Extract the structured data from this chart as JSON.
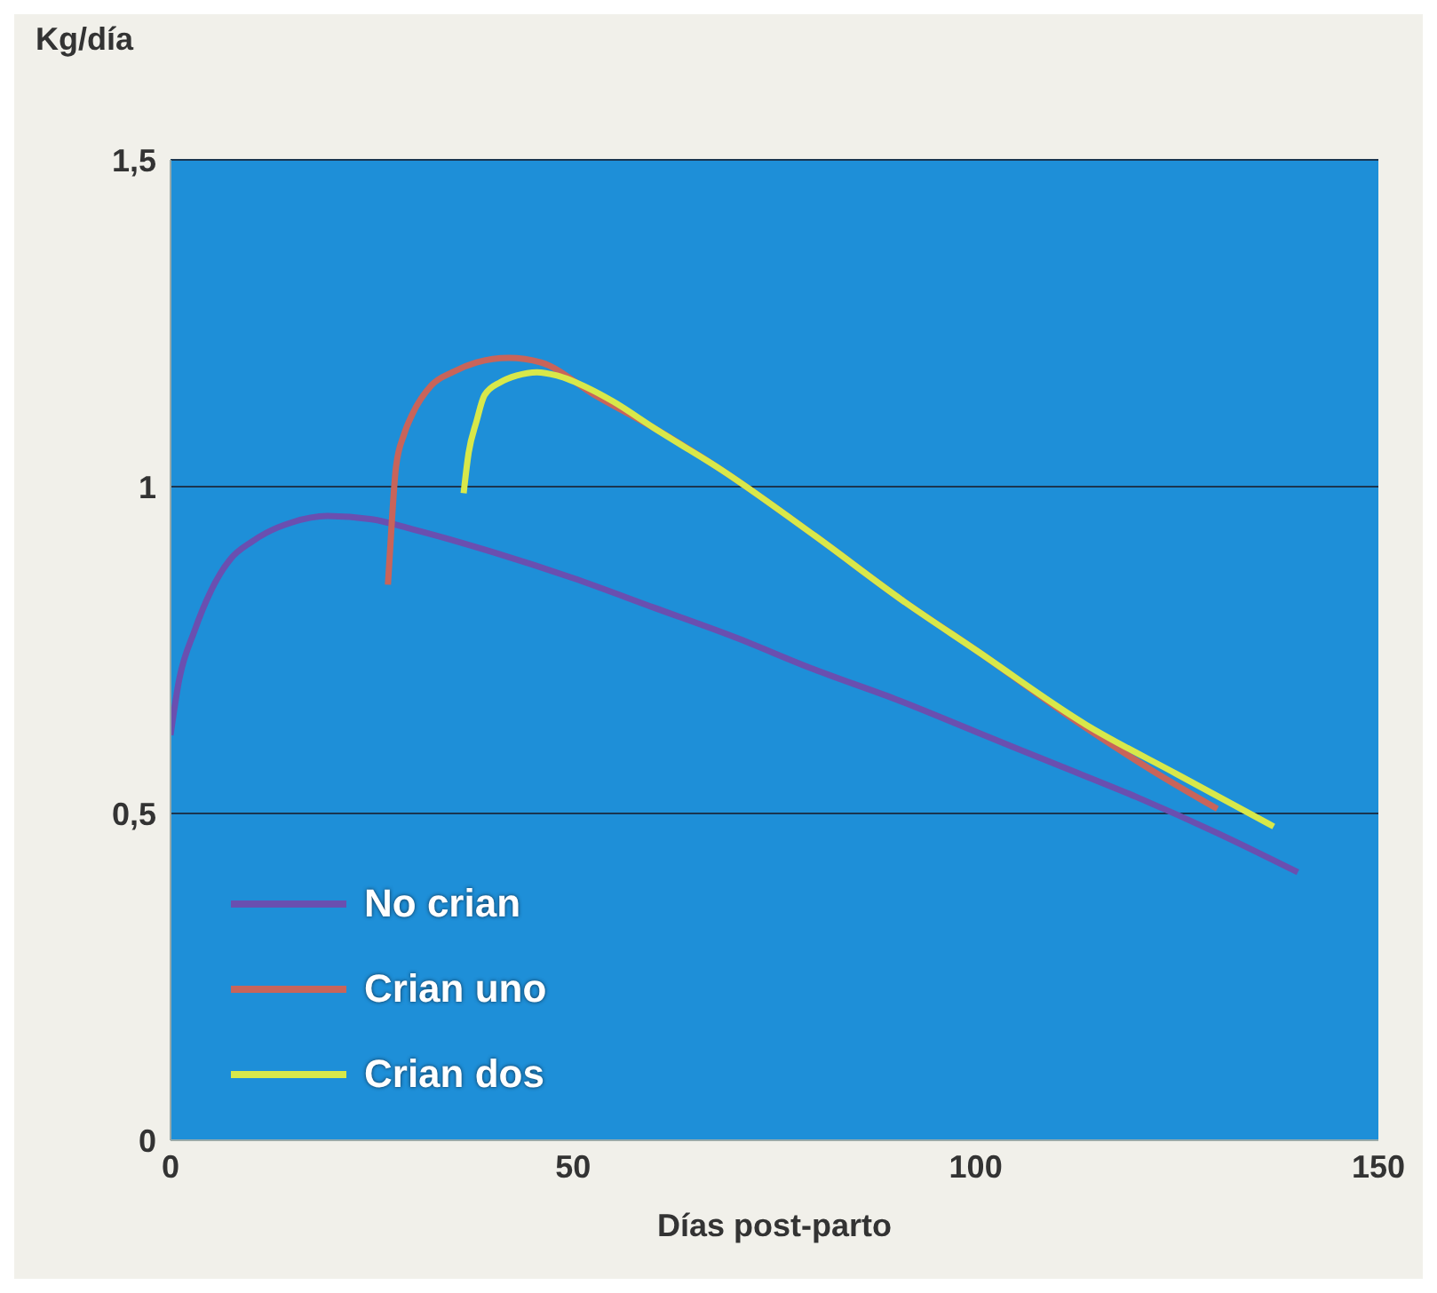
{
  "chart_data": {
    "type": "line",
    "ylabel": "Kg/día",
    "xlabel": "Días post-parto",
    "xlim": [
      0,
      150
    ],
    "ylim": [
      0,
      1.5
    ],
    "xticks": [
      0,
      50,
      100,
      150
    ],
    "yticks": [
      {
        "value": 0,
        "label": "0"
      },
      {
        "value": 0.5,
        "label": "0,5"
      },
      {
        "value": 1,
        "label": "1"
      },
      {
        "value": 1.5,
        "label": "1,5"
      }
    ],
    "grid": "y",
    "legend": "bottom left",
    "marker": "none",
    "line_style": "solid",
    "series": [
      {
        "name": "No crian",
        "color": "#6a4fb0",
        "x": [
          0,
          1,
          3,
          5,
          7.5,
          10,
          12,
          15,
          19.5,
          25,
          30,
          40,
          50,
          60,
          70,
          80,
          90,
          100,
          110,
          120,
          130,
          140
        ],
        "values": [
          0.62,
          0.7,
          0.78,
          0.84,
          0.89,
          0.915,
          0.93,
          0.945,
          0.955,
          0.95,
          0.935,
          0.9,
          0.86,
          0.815,
          0.77,
          0.72,
          0.675,
          0.625,
          0.575,
          0.525,
          0.47,
          0.41
        ]
      },
      {
        "name": "Crian uno",
        "color": "#c8645a",
        "x": [
          27,
          27.5,
          28,
          29,
          30,
          32.4,
          35,
          38,
          42,
          46,
          52.7,
          60,
          68.5,
          80,
          91,
          100,
          113.8,
          122,
          130
        ],
        "values": [
          0.85,
          0.95,
          1.03,
          1.08,
          1.11,
          1.155,
          1.175,
          1.19,
          1.197,
          1.19,
          1.14,
          1.09,
          1.025,
          0.925,
          0.825,
          0.75,
          0.63,
          0.565,
          0.507
        ]
      },
      {
        "name": "Crian dos",
        "color": "#d8e84a",
        "x": [
          36.4,
          37,
          38,
          39,
          41,
          43,
          45.5,
          48,
          52,
          55,
          60,
          68.5,
          80,
          91,
          100,
          113.8,
          125,
          137
        ],
        "values": [
          0.99,
          1.05,
          1.1,
          1.14,
          1.16,
          1.17,
          1.175,
          1.17,
          1.15,
          1.13,
          1.09,
          1.025,
          0.925,
          0.825,
          0.75,
          0.635,
          0.56,
          0.48
        ]
      }
    ]
  }
}
